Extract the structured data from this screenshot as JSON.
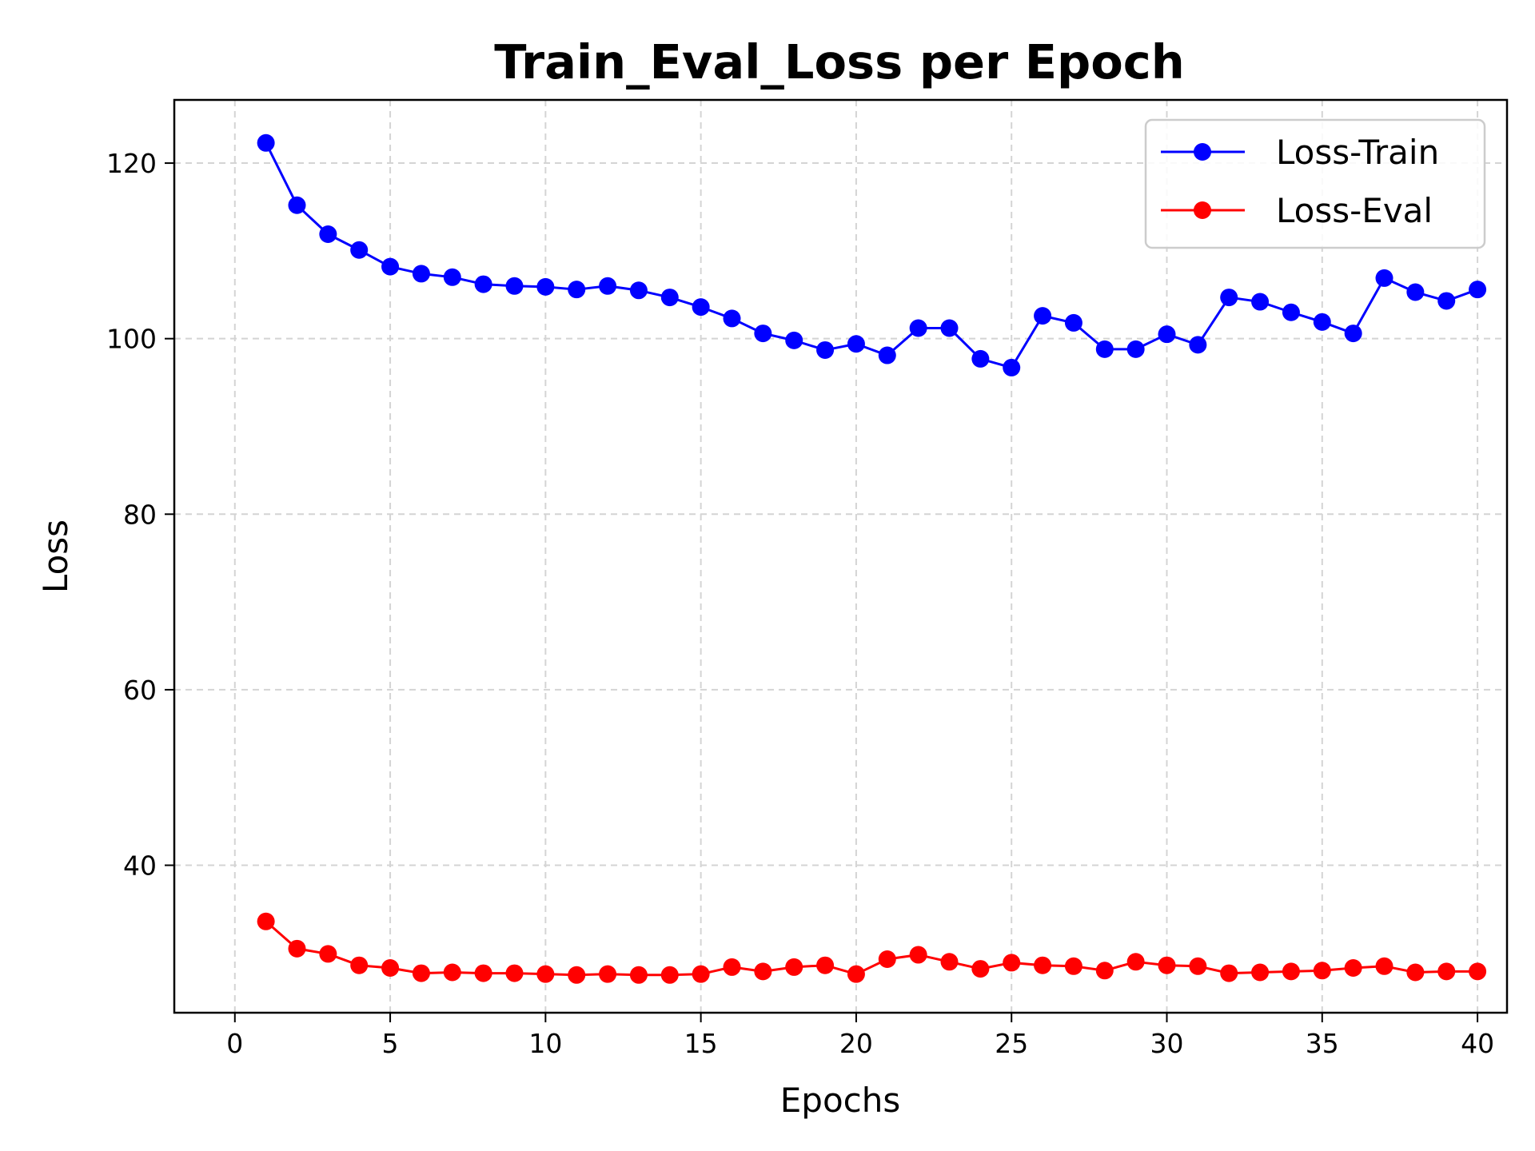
{
  "chart_data": {
    "type": "line",
    "title": "Train_Eval_Loss per Epoch",
    "xlabel": "Epochs",
    "ylabel": "Loss",
    "xlim": [
      -1.95,
      40.95
    ],
    "ylim": [
      23.2,
      127.2
    ],
    "xticks": [
      0,
      5,
      10,
      15,
      20,
      25,
      30,
      35,
      40
    ],
    "yticks": [
      40,
      60,
      80,
      100,
      120
    ],
    "grid": true,
    "legend_position": "top-right",
    "x": [
      1,
      2,
      3,
      4,
      5,
      6,
      7,
      8,
      9,
      10,
      11,
      12,
      13,
      14,
      15,
      16,
      17,
      18,
      19,
      20,
      21,
      22,
      23,
      24,
      25,
      26,
      27,
      28,
      29,
      30,
      31,
      32,
      33,
      34,
      35,
      36,
      37,
      38,
      39,
      40
    ],
    "series": [
      {
        "name": "Loss-Train",
        "color": "#0000ff",
        "marker": "circle",
        "values": [
          122.3,
          115.2,
          111.9,
          110.1,
          108.2,
          107.4,
          107.0,
          106.2,
          106.0,
          105.9,
          105.6,
          106.0,
          105.5,
          104.7,
          103.6,
          102.3,
          100.6,
          99.8,
          98.7,
          99.4,
          98.1,
          101.2,
          101.2,
          97.7,
          96.7,
          102.6,
          101.8,
          98.8,
          98.8,
          100.5,
          99.3,
          104.7,
          104.2,
          103.0,
          101.9,
          100.6,
          106.9,
          105.3,
          104.3,
          105.6
        ]
      },
      {
        "name": "Loss-Eval",
        "color": "#ff0000",
        "marker": "circle",
        "values": [
          33.6,
          30.5,
          29.9,
          28.6,
          28.3,
          27.7,
          27.8,
          27.7,
          27.7,
          27.6,
          27.5,
          27.6,
          27.5,
          27.5,
          27.6,
          28.4,
          27.9,
          28.4,
          28.6,
          27.6,
          29.3,
          29.8,
          29.0,
          28.2,
          28.9,
          28.6,
          28.5,
          28.0,
          29.0,
          28.6,
          28.5,
          27.7,
          27.8,
          27.9,
          28.0,
          28.3,
          28.5,
          27.8,
          27.9,
          27.9
        ]
      }
    ]
  }
}
